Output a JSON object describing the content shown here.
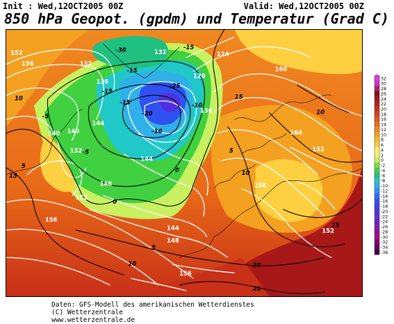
{
  "header": {
    "init": "Init : Wed,12OCT2005 00Z",
    "valid": "Valid: Wed,12OCT2005 00Z",
    "title": "850 hPa Geopot. (gpdm) und Temperatur (Grad C)"
  },
  "footer": {
    "line1": "Daten: GFS-Modell des amerikanischen Wetterdienstes",
    "line2": "(C) Wetterzentrale",
    "line3": "www.wetterzentrale.de"
  },
  "color_scale": {
    "labels": [
      "32",
      "30",
      "28",
      "26",
      "24",
      "22",
      "20",
      "18",
      "16",
      "14",
      "12",
      "10",
      "8",
      "6",
      "4",
      "2",
      "0",
      "-2",
      "-4",
      "-6",
      "-8",
      "-10",
      "-12",
      "-14",
      "-16",
      "-18",
      "-20",
      "-22",
      "-24",
      "-26",
      "-28",
      "-30",
      "-32",
      "-34",
      "-36"
    ],
    "colors": [
      "#e040e0",
      "#d030d0",
      "#b02070",
      "#8a1010",
      "#a01818",
      "#b82020",
      "#c83018",
      "#d84020",
      "#e05818",
      "#e87018",
      "#f08820",
      "#f4a020",
      "#f8b830",
      "#fcd040",
      "#fff060",
      "#f0f070",
      "#c8f060",
      "#78e040",
      "#40d040",
      "#20c080",
      "#20c8c8",
      "#30b0e8",
      "#3090f0",
      "#3070f0",
      "#3050f0",
      "#4040e8",
      "#5030e0",
      "#6030d0",
      "#7020c0",
      "#8020b0",
      "#901098",
      "#a01080",
      "#800070",
      "#600060",
      "#400040"
    ]
  },
  "map_labels": {
    "geopotential": [
      "152",
      "156",
      "132",
      "136",
      "140",
      "144",
      "128",
      "124",
      "132",
      "148",
      "152",
      "156",
      "156",
      "160",
      "164",
      "152",
      "158",
      "152",
      "148",
      "144",
      "136",
      "132",
      "140",
      "144"
    ],
    "temperature": [
      "-30",
      "-15",
      "-15",
      "-25",
      "-20",
      "-15",
      "-10",
      "-5",
      "0",
      "-5",
      "5",
      "10",
      "15",
      "20",
      "10",
      "5",
      "-10",
      "-15",
      "0",
      "5",
      "10",
      "15",
      "10",
      "15",
      "20"
    ]
  }
}
